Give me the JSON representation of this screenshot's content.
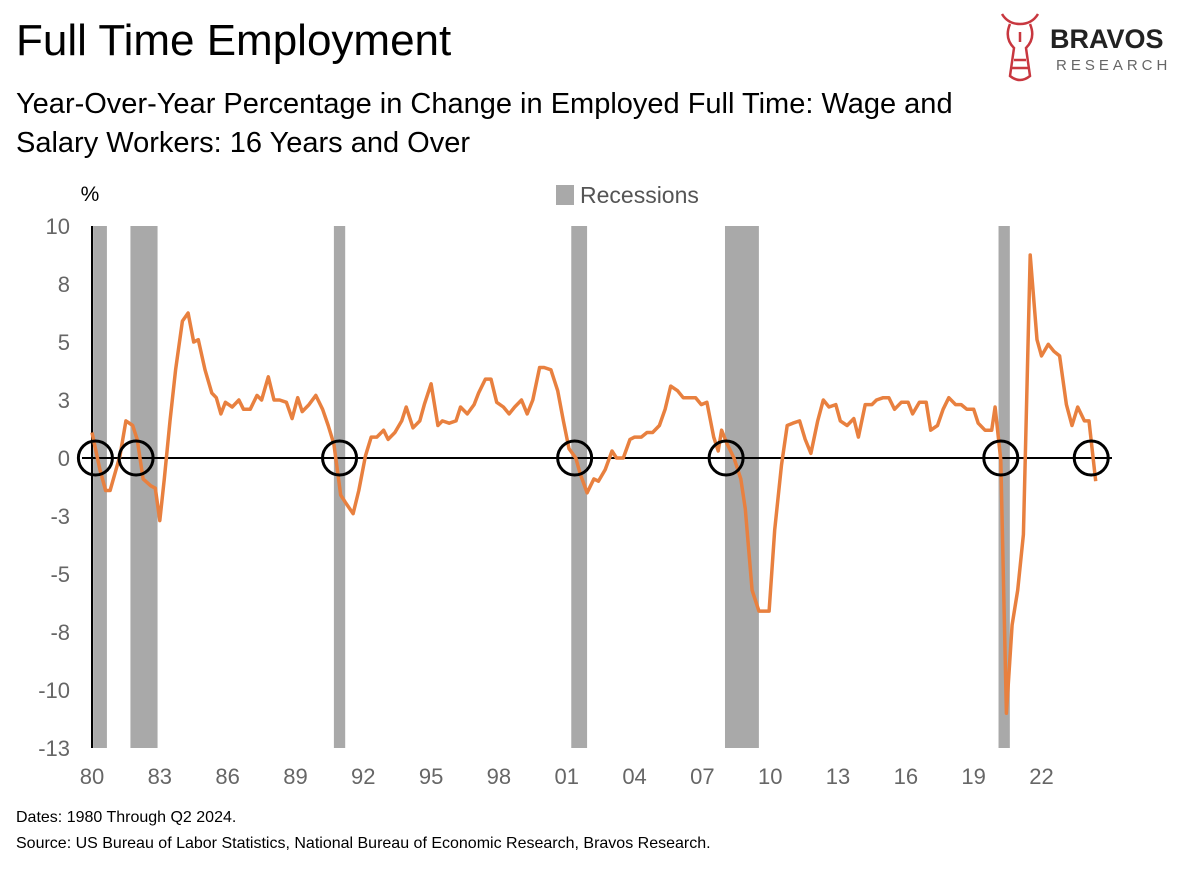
{
  "chart_data": {
    "type": "line",
    "title": "Full Time Employment",
    "subtitle": [
      "Year-Over-Year Percentage in Change in Employed Full Time: Wage and",
      "Salary Workers: 16 Years and Over"
    ],
    "y_label": "%",
    "logo": {
      "name": "BRAVOS",
      "tagline": "RESEARCH"
    },
    "footnotes": [
      "Dates: 1980 Through Q2 2024.",
      "Source: US Bureau of Labor Statistics, National Bureau of Economic Research, Bravos Research."
    ],
    "color": "#e8803f",
    "x": [
      1980.0,
      1980.35,
      1980.6,
      1980.8,
      1981.24,
      1981.5,
      1981.8,
      1982.0,
      1982.26,
      1982.6,
      1982.8,
      1983.0,
      1983.2,
      1983.45,
      1983.7,
      1984.0,
      1984.25,
      1984.5,
      1984.7,
      1985.0,
      1985.3,
      1985.5,
      1985.7,
      1985.9,
      1986.2,
      1986.5,
      1986.7,
      1987.0,
      1987.3,
      1987.5,
      1987.8,
      1988.05,
      1988.3,
      1988.6,
      1988.85,
      1989.1,
      1989.3,
      1989.6,
      1989.9,
      1990.2,
      1990.45,
      1990.7,
      1991.0,
      1991.2,
      1991.55,
      1991.8,
      1992.1,
      1992.35,
      1992.6,
      1992.9,
      1993.1,
      1993.4,
      1993.7,
      1993.9,
      1994.2,
      1994.5,
      1994.7,
      1995.0,
      1995.3,
      1995.5,
      1995.8,
      1996.1,
      1996.3,
      1996.6,
      1996.9,
      1997.1,
      1997.4,
      1997.65,
      1997.9,
      1998.2,
      1998.45,
      1998.7,
      1999.0,
      1999.25,
      1999.5,
      1999.8,
      2000.0,
      2000.3,
      2000.6,
      2000.85,
      2001.1,
      2001.4,
      2001.6,
      2001.9,
      2002.2,
      2002.4,
      2002.7,
      2003.0,
      2003.2,
      2003.5,
      2003.8,
      2004.0,
      2004.3,
      2004.55,
      2004.8,
      2005.1,
      2005.35,
      2005.6,
      2005.9,
      2006.15,
      2006.4,
      2006.7,
      2006.95,
      2007.2,
      2007.5,
      2007.7,
      2007.85,
      2008.1,
      2008.4,
      2008.7,
      2008.9,
      2009.2,
      2009.5,
      2009.7,
      2009.95,
      2010.2,
      2010.5,
      2010.75,
      2011.0,
      2011.3,
      2011.55,
      2011.8,
      2012.1,
      2012.35,
      2012.6,
      2012.9,
      2013.1,
      2013.4,
      2013.7,
      2013.9,
      2014.2,
      2014.5,
      2014.7,
      2015.0,
      2015.25,
      2015.5,
      2015.8,
      2016.1,
      2016.3,
      2016.6,
      2016.9,
      2017.1,
      2017.4,
      2017.65,
      2017.9,
      2018.2,
      2018.45,
      2018.7,
      2019.0,
      2019.2,
      2019.5,
      2019.8,
      2019.95,
      2020.2,
      2020.45,
      2020.7,
      2020.95,
      2021.2,
      2021.5,
      2021.8,
      2022.0,
      2022.3,
      2022.55,
      2022.8,
      2023.1,
      2023.35,
      2023.6,
      2023.9,
      2024.1,
      2024.4
    ],
    "values": [
      1.1,
      -0.5,
      -1.4,
      -1.4,
      0.1,
      1.6,
      1.4,
      0.8,
      -0.9,
      -1.2,
      -1.3,
      -2.7,
      -0.9,
      1.6,
      3.8,
      5.9,
      6.25,
      5.0,
      5.1,
      3.8,
      2.8,
      2.6,
      1.9,
      2.4,
      2.2,
      2.5,
      2.1,
      2.1,
      2.7,
      2.5,
      3.5,
      2.5,
      2.5,
      2.4,
      1.7,
      2.6,
      2.0,
      2.3,
      2.7,
      2.1,
      1.4,
      0.6,
      -1.6,
      -1.9,
      -2.4,
      -1.4,
      0.1,
      0.9,
      0.9,
      1.2,
      0.8,
      1.1,
      1.6,
      2.2,
      1.3,
      1.6,
      2.3,
      3.2,
      1.4,
      1.6,
      1.5,
      1.6,
      2.2,
      1.9,
      2.3,
      2.8,
      3.4,
      3.4,
      2.4,
      2.2,
      1.9,
      2.2,
      2.5,
      1.9,
      2.5,
      3.9,
      3.9,
      3.8,
      2.9,
      1.6,
      0.4,
      0.0,
      -0.7,
      -1.5,
      -0.9,
      -1.0,
      -0.5,
      0.3,
      0.0,
      0.0,
      0.8,
      0.9,
      0.9,
      1.1,
      1.1,
      1.4,
      2.1,
      3.1,
      2.9,
      2.6,
      2.6,
      2.6,
      2.3,
      2.4,
      0.9,
      0.3,
      1.2,
      0.6,
      0.0,
      -0.9,
      -2.2,
      -5.7,
      -6.6,
      -6.6,
      -6.6,
      -3.1,
      -0.3,
      1.4,
      1.5,
      1.6,
      0.8,
      0.2,
      1.6,
      2.5,
      2.2,
      2.3,
      1.6,
      1.4,
      1.7,
      0.9,
      2.3,
      2.3,
      2.5,
      2.6,
      2.6,
      2.1,
      2.4,
      2.4,
      1.9,
      2.4,
      2.4,
      1.2,
      1.4,
      2.1,
      2.6,
      2.3,
      2.3,
      2.1,
      2.1,
      1.5,
      1.2,
      1.2,
      2.2,
      -0.1,
      -11.0,
      -7.2,
      -5.7,
      -3.3,
      8.75,
      5.1,
      4.4,
      4.9,
      4.6,
      4.4,
      2.3,
      1.4,
      2.2,
      1.6,
      1.6,
      -1.0
    ],
    "xlim": [
      1980,
      2024.5
    ],
    "xticks": [
      {
        "value": 1980,
        "label": "80"
      },
      {
        "value": 1983,
        "label": "83"
      },
      {
        "value": 1986,
        "label": "86"
      },
      {
        "value": 1989,
        "label": "89"
      },
      {
        "value": 1992,
        "label": "92"
      },
      {
        "value": 1995,
        "label": "95"
      },
      {
        "value": 1998,
        "label": "98"
      },
      {
        "value": 2001,
        "label": "01"
      },
      {
        "value": 2004,
        "label": "04"
      },
      {
        "value": 2007,
        "label": "07"
      },
      {
        "value": 2010,
        "label": "10"
      },
      {
        "value": 2013,
        "label": "13"
      },
      {
        "value": 2016,
        "label": "16"
      },
      {
        "value": 2019,
        "label": "19"
      },
      {
        "value": 2022,
        "label": "22"
      }
    ],
    "ylim": [
      -12.5,
      10
    ],
    "yticks": [
      10,
      {
        "value": 7.5,
        "label": "8"
      },
      5,
      {
        "value": 2.5,
        "label": "3"
      },
      0,
      {
        "value": -2.5,
        "label": "-3"
      },
      -5,
      {
        "value": -7.5,
        "label": "-8"
      },
      -10,
      {
        "value": -12.5,
        "label": "-13"
      }
    ],
    "recession_label": "Recessions",
    "recession_color": "#a9a9a9",
    "recessions": [
      [
        1980.05,
        1980.66
      ],
      [
        1981.7,
        1982.9
      ],
      [
        1990.7,
        1991.2
      ],
      [
        2001.2,
        2001.9
      ],
      [
        2008.0,
        2009.5
      ],
      [
        2020.1,
        2020.6
      ]
    ],
    "zero_crossings": [
      1980.15,
      1981.95,
      1990.95,
      2001.35,
      2008.05,
      2020.2,
      2024.2
    ]
  }
}
